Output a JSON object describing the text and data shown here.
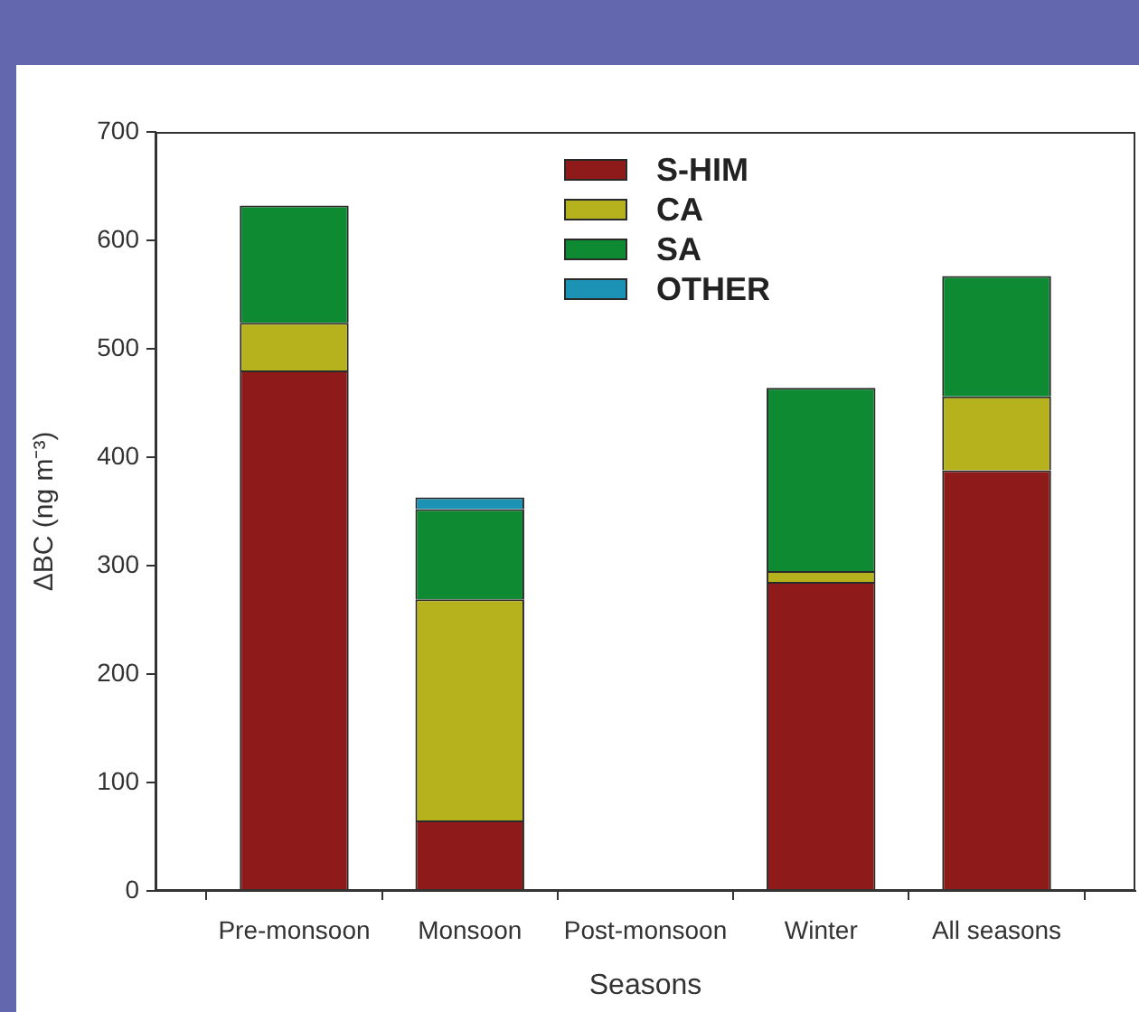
{
  "chart_data": {
    "type": "bar",
    "stacked": true,
    "xlabel": "Seasons",
    "ylabel": "ΔBC (ng m⁻³)",
    "categories": [
      "Pre-monsoon",
      "Monsoon",
      "Post-monsoon",
      "Winter",
      "All seasons"
    ],
    "series": [
      {
        "name": "S-HIM",
        "color": "#8e1a1a",
        "values": [
          480,
          65,
          null,
          285,
          388
        ]
      },
      {
        "name": "CA",
        "color": "#b5b21e",
        "values": [
          44,
          204,
          null,
          10,
          68
        ]
      },
      {
        "name": "SA",
        "color": "#0e8a32",
        "values": [
          108,
          83,
          null,
          169,
          111
        ]
      },
      {
        "name": "OTHER",
        "color": "#1c93b5",
        "values": [
          null,
          11,
          null,
          null,
          null
        ]
      }
    ],
    "ylim": [
      0,
      700
    ],
    "yticks": [
      0,
      100,
      200,
      300,
      400,
      500,
      600,
      700
    ],
    "grid": false,
    "legend": "top"
  }
}
